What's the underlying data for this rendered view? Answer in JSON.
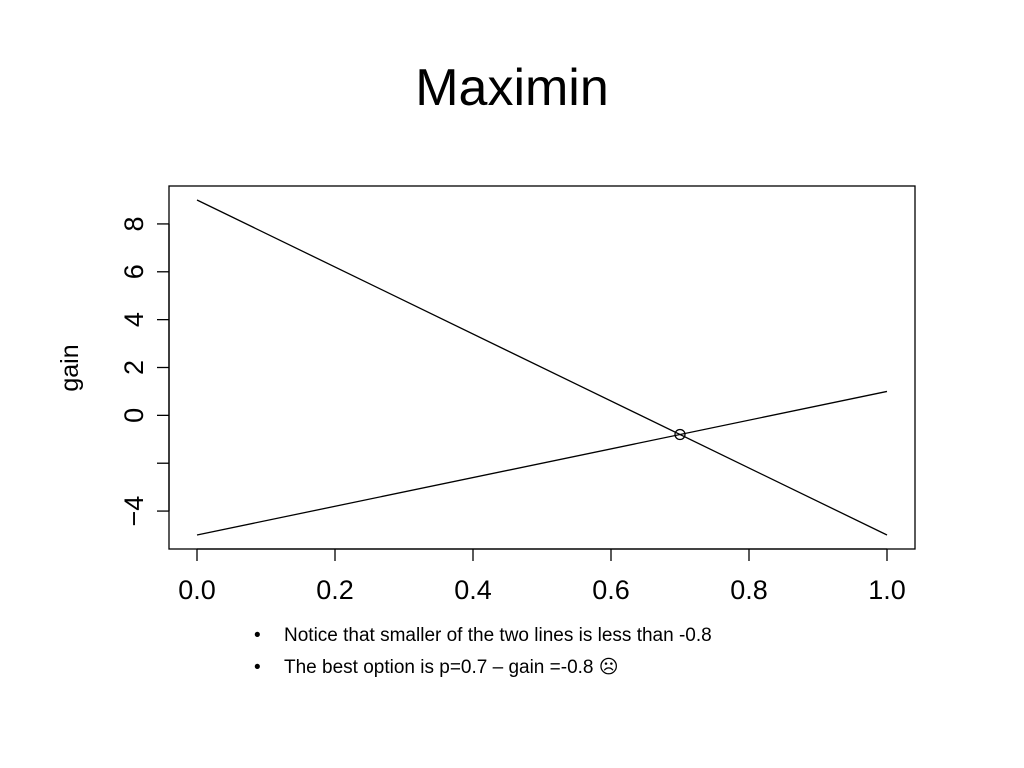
{
  "slide": {
    "title": "Maximin",
    "bullet_symbol": "•",
    "bullets": [
      "Notice that smaller of the two lines is less than -0.8",
      "The best option is p=0.7 – gain =-0.8 ☹"
    ]
  },
  "chart_data": {
    "type": "line",
    "title": "",
    "xlabel": "",
    "ylabel": "gain",
    "xlim": [
      0.0,
      1.0
    ],
    "ylim": [
      -5,
      9
    ],
    "x_ticks": [
      0.0,
      0.2,
      0.4,
      0.6,
      0.8,
      1.0
    ],
    "x_tick_labels": [
      "0.0",
      "0.2",
      "0.4",
      "0.6",
      "0.8",
      "1.0"
    ],
    "y_ticks": [
      -4,
      -2,
      0,
      2,
      4,
      6,
      8
    ],
    "y_tick_labels": [
      "−4",
      "",
      "0",
      "2",
      "4",
      "6",
      "8"
    ],
    "grid": false,
    "legend": "none",
    "series": [
      {
        "x": [
          0.0,
          1.0
        ],
        "y": [
          9,
          -5
        ]
      },
      {
        "x": [
          0.0,
          1.0
        ],
        "y": [
          -5,
          1
        ]
      }
    ],
    "marker": {
      "x": 0.7,
      "y": -0.8,
      "shape": "open-circle"
    },
    "line_color": "#000000"
  }
}
